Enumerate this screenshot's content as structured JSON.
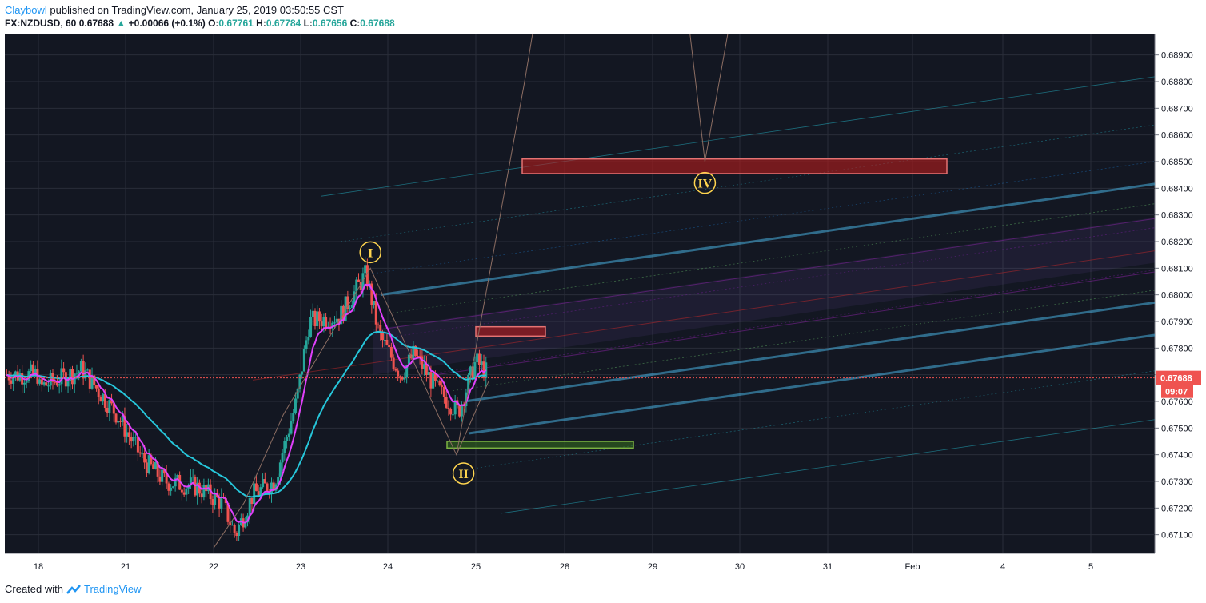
{
  "header": {
    "author": "Claybowl",
    "published": "published on TradingView.com, January 25, 2019 03:50:55 CST",
    "symbol": "FX:NZDUSD, 60",
    "last": "0.67688",
    "change": "+0.00066 (+0.1%)",
    "o_label": "O:",
    "o": "0.67761",
    "h_label": "H:",
    "h": "0.67784",
    "l_label": "L:",
    "l": "0.67656",
    "c_label": "C:",
    "c": "0.67688"
  },
  "footer": {
    "created": "Created with",
    "brand": "TradingView"
  },
  "chart_data": {
    "type": "candlestick",
    "symbol": "FX:NZDUSD",
    "interval": "60",
    "ylim": [
      0.6703,
      0.6898
    ],
    "y_ticks": [
      "0.68900",
      "0.68800",
      "0.68700",
      "0.68600",
      "0.68500",
      "0.68400",
      "0.68300",
      "0.68200",
      "0.68100",
      "0.68000",
      "0.67900",
      "0.67800",
      "0.67700",
      "0.67600",
      "0.67500",
      "0.67400",
      "0.67300",
      "0.67200",
      "0.67100"
    ],
    "x_labels": [
      "18",
      "21",
      "22",
      "23",
      "24",
      "25",
      "28",
      "29",
      "30",
      "31",
      "Feb",
      "4",
      "5"
    ],
    "last_price_label": "0.67688",
    "countdown_label": "09:07",
    "wave_labels": [
      "I",
      "II",
      "IV"
    ],
    "zones": [
      {
        "kind": "resistance",
        "from_x": "25.5",
        "to_x": "Feb",
        "low": 0.68455,
        "high": 0.6851
      },
      {
        "kind": "resistance",
        "from_x": "25",
        "to_x": "25.8",
        "low": 0.67845,
        "high": 0.6788
      },
      {
        "kind": "support",
        "from_x": "24.6",
        "to_x": "28.8",
        "low": 0.67425,
        "high": 0.6745
      }
    ],
    "colors": {
      "background": "#131722",
      "grid": "#2a2e39",
      "up": "#26a69a",
      "down": "#ef5350",
      "ema_fast": "#e040fb",
      "ema_slow": "#26c6da",
      "pitchfork": "#1e88e5",
      "resistance": "#b71c1c",
      "support": "#33691e",
      "label": "#ffd54f"
    }
  }
}
